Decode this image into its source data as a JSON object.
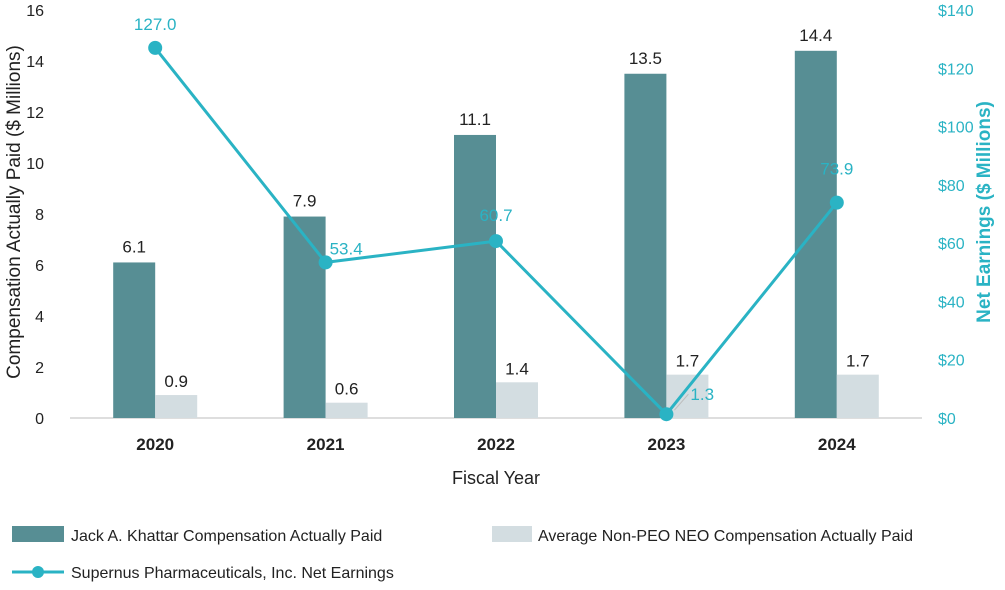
{
  "chart_data": {
    "type": "bar",
    "title": "",
    "xlabel": "Fiscal Year",
    "ylabel": "Compensation Actually Paid ($ Millions)",
    "y2label": "Net Earnings ($ Millions)",
    "categories": [
      "2020",
      "2021",
      "2022",
      "2023",
      "2024"
    ],
    "ylim": [
      0,
      16
    ],
    "yticks": [
      "0",
      "2",
      "4",
      "6",
      "8",
      "10",
      "12",
      "14",
      "16"
    ],
    "y2lim": [
      0,
      140
    ],
    "y2ticks": [
      "$0",
      "$20",
      "$40",
      "$60",
      "$80",
      "$100",
      "$120",
      "$140"
    ],
    "series": [
      {
        "name": "Jack A. Khattar Compensation Actually Paid",
        "kind": "bar",
        "axis": "left",
        "color": "#578e94",
        "values": [
          6.1,
          7.9,
          11.1,
          13.5,
          14.4
        ],
        "labels": [
          "6.1",
          "7.9",
          "11.1",
          "13.5",
          "14.4"
        ]
      },
      {
        "name": "Average Non-PEO NEO Compensation Actually Paid",
        "kind": "bar",
        "axis": "left",
        "color": "#d3dde1",
        "values": [
          0.9,
          0.6,
          1.4,
          1.7,
          1.7
        ],
        "labels": [
          "0.9",
          "0.6",
          "1.4",
          "1.7",
          "1.7"
        ]
      },
      {
        "name": "Supernus Pharmaceuticals, Inc. Net Earnings",
        "kind": "line",
        "axis": "right",
        "color": "#2ab3c4",
        "values": [
          127.0,
          53.4,
          60.7,
          1.3,
          73.9
        ],
        "labels": [
          "127.0",
          "53.4",
          "60.7",
          "1.3",
          "73.9"
        ]
      }
    ],
    "legend": "bottom"
  }
}
